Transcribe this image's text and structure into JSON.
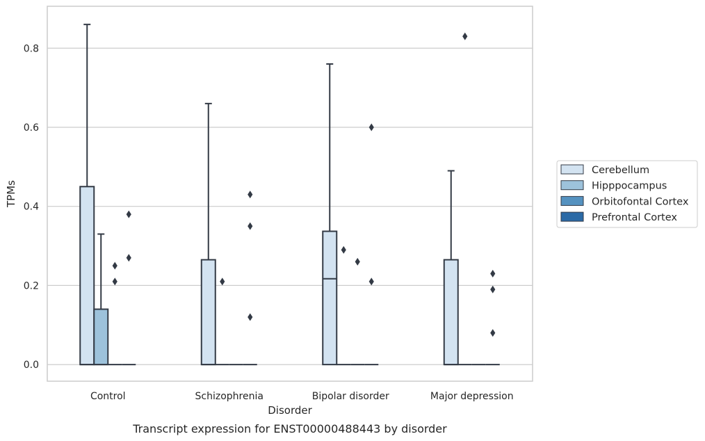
{
  "chart_data": {
    "type": "box",
    "caption": "Transcript expression for ENST00000488443 by disorder",
    "xlabel": "Disorder",
    "ylabel": "TPMs",
    "ylim": [
      -0.042,
      0.906
    ],
    "yticks": [
      0.0,
      0.2,
      0.4,
      0.6,
      0.8
    ],
    "ytick_labels": [
      "0.0",
      "0.2",
      "0.4",
      "0.6",
      "0.8"
    ],
    "grid": true,
    "legend_position": "right",
    "categories": [
      "Control",
      "Schizophrenia",
      "Bipolar disorder",
      "Major depression"
    ],
    "series": [
      {
        "name": "Cerebellum",
        "color": "#d3e3f1",
        "boxes": [
          {
            "q1": 0,
            "median": 0,
            "q3": 0.45,
            "whisker_low": 0,
            "whisker_high": 0.86,
            "outliers": []
          },
          {
            "q1": 0,
            "median": 0,
            "q3": 0.265,
            "whisker_low": 0,
            "whisker_high": 0.66,
            "outliers": []
          },
          {
            "q1": 0,
            "median": 0.217,
            "q3": 0.337,
            "whisker_low": 0,
            "whisker_high": 0.76,
            "outliers": []
          },
          {
            "q1": 0,
            "median": 0,
            "q3": 0.265,
            "whisker_low": 0,
            "whisker_high": 0.49,
            "outliers": []
          }
        ]
      },
      {
        "name": "Hipppocampus",
        "color": "#9dc2db",
        "boxes": [
          {
            "q1": 0,
            "median": 0,
            "q3": 0.14,
            "whisker_low": 0,
            "whisker_high": 0.33,
            "outliers": []
          },
          {
            "q1": 0,
            "median": 0,
            "q3": 0,
            "whisker_low": 0,
            "whisker_high": 0,
            "outliers": [
              0.21
            ]
          },
          {
            "q1": 0,
            "median": 0,
            "q3": 0,
            "whisker_low": 0,
            "whisker_high": 0,
            "outliers": [
              0.29
            ]
          },
          {
            "q1": 0,
            "median": 0,
            "q3": 0,
            "whisker_low": 0,
            "whisker_high": 0,
            "outliers": [
              0.83
            ]
          }
        ]
      },
      {
        "name": "Orbitofontal Cortex",
        "color": "#5592c0",
        "boxes": [
          {
            "q1": 0,
            "median": 0,
            "q3": 0,
            "whisker_low": 0,
            "whisker_high": 0,
            "outliers": [
              0.21,
              0.25
            ]
          },
          {
            "q1": 0,
            "median": 0,
            "q3": 0,
            "whisker_low": 0,
            "whisker_high": 0,
            "outliers": []
          },
          {
            "q1": 0,
            "median": 0,
            "q3": 0,
            "whisker_low": 0,
            "whisker_high": 0,
            "outliers": [
              0.26
            ]
          },
          {
            "q1": 0,
            "median": 0,
            "q3": 0,
            "whisker_low": 0,
            "whisker_high": 0,
            "outliers": []
          }
        ]
      },
      {
        "name": "Prefrontal Cortex",
        "color": "#2b6aa6",
        "boxes": [
          {
            "q1": 0,
            "median": 0,
            "q3": 0,
            "whisker_low": 0,
            "whisker_high": 0,
            "outliers": [
              0.27,
              0.38
            ]
          },
          {
            "q1": 0,
            "median": 0,
            "q3": 0,
            "whisker_low": 0,
            "whisker_high": 0,
            "outliers": [
              0.12,
              0.35,
              0.43
            ]
          },
          {
            "q1": 0,
            "median": 0,
            "q3": 0,
            "whisker_low": 0,
            "whisker_high": 0,
            "outliers": [
              0.21,
              0.6
            ]
          },
          {
            "q1": 0,
            "median": 0,
            "q3": 0,
            "whisker_low": 0,
            "whisker_high": 0,
            "outliers": [
              0.08,
              0.19,
              0.23
            ]
          }
        ]
      }
    ]
  }
}
